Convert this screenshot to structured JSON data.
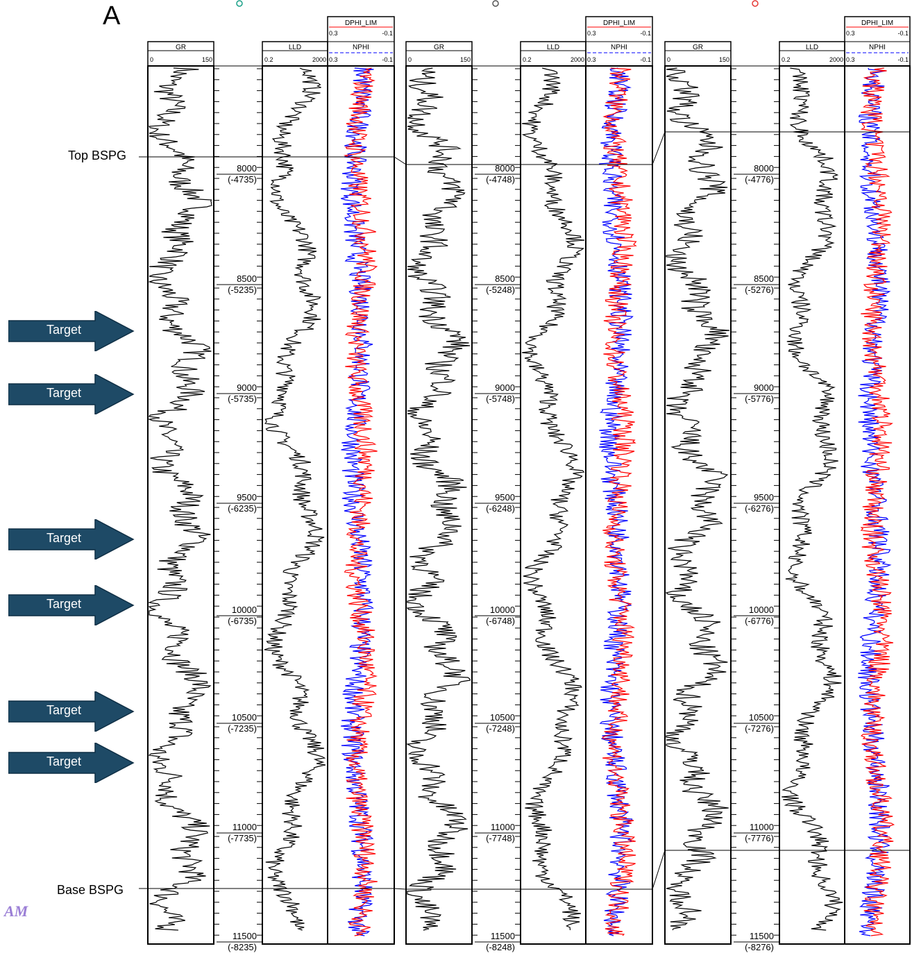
{
  "panel_label": "A",
  "markers": {
    "top": "Top BSPG",
    "base": "Base BSPG"
  },
  "watermark": "AM",
  "arrows": [
    {
      "label": "Target"
    },
    {
      "label": "Target"
    },
    {
      "label": "Target"
    },
    {
      "label": "Target"
    },
    {
      "label": "Target"
    },
    {
      "label": "Target"
    }
  ],
  "wells": [
    {
      "gr": {
        "name": "GR",
        "min": "0",
        "max": "150"
      },
      "lld": {
        "name": "LLD",
        "min": "0.2",
        "max": "2000"
      },
      "dphi": {
        "name": "DPHI_LIM",
        "min": "0.3",
        "max": "-0.1"
      },
      "nphi": {
        "name": "NPHI",
        "min": "0.3",
        "max": "-0.1"
      },
      "depths": [
        {
          "md": "8000",
          "tvdss": "(-4735)"
        },
        {
          "md": "8500",
          "tvdss": "(-5235)"
        },
        {
          "md": "9000",
          "tvdss": "(-5735)"
        },
        {
          "md": "9500",
          "tvdss": "(-6235)"
        },
        {
          "md": "10000",
          "tvdss": "(-6735)"
        },
        {
          "md": "10500",
          "tvdss": "(-7235)"
        },
        {
          "md": "11000",
          "tvdss": "(-7735)"
        },
        {
          "md": "11500",
          "tvdss": "(-8235)"
        }
      ]
    },
    {
      "gr": {
        "name": "GR",
        "min": "0",
        "max": "150"
      },
      "lld": {
        "name": "LLD",
        "min": "0.2",
        "max": "2000"
      },
      "dphi": {
        "name": "DPHI_LIM",
        "min": "0.3",
        "max": "-0.1"
      },
      "nphi": {
        "name": "NPHI",
        "min": "0.3",
        "max": "-0.1"
      },
      "depths": [
        {
          "md": "8000",
          "tvdss": "(-4748)"
        },
        {
          "md": "8500",
          "tvdss": "(-5248)"
        },
        {
          "md": "9000",
          "tvdss": "(-5748)"
        },
        {
          "md": "9500",
          "tvdss": "(-6248)"
        },
        {
          "md": "10000",
          "tvdss": "(-6748)"
        },
        {
          "md": "10500",
          "tvdss": "(-7248)"
        },
        {
          "md": "11000",
          "tvdss": "(-7748)"
        },
        {
          "md": "11500",
          "tvdss": "(-8248)"
        }
      ]
    },
    {
      "gr": {
        "name": "GR",
        "min": "0",
        "max": "150"
      },
      "lld": {
        "name": "LLD",
        "min": "0.2",
        "max": "2000"
      },
      "dphi": {
        "name": "DPHI_LIM",
        "min": "0.3",
        "max": "-0.1"
      },
      "nphi": {
        "name": "NPHI",
        "min": "0.3",
        "max": "-0.1"
      },
      "depths": [
        {
          "md": "8000",
          "tvdss": "(-4776)"
        },
        {
          "md": "8500",
          "tvdss": "(-5276)"
        },
        {
          "md": "9000",
          "tvdss": "(-5776)"
        },
        {
          "md": "9500",
          "tvdss": "(-6276)"
        },
        {
          "md": "10000",
          "tvdss": "(-6776)"
        },
        {
          "md": "10500",
          "tvdss": "(-7276)"
        },
        {
          "md": "11000",
          "tvdss": "(-7776)"
        },
        {
          "md": "11500",
          "tvdss": "(-8276)"
        }
      ]
    }
  ],
  "colors": {
    "gr_curve": "#000000",
    "lld_curve": "#000000",
    "dphi_curve": "#ff0000",
    "nphi_curve": "#0000ff",
    "arrow_fill": "#1e4a66",
    "arrow_stroke": "#0f2f45",
    "well_icon_1": "#1aa088",
    "well_icon_3": "#e53935"
  }
}
